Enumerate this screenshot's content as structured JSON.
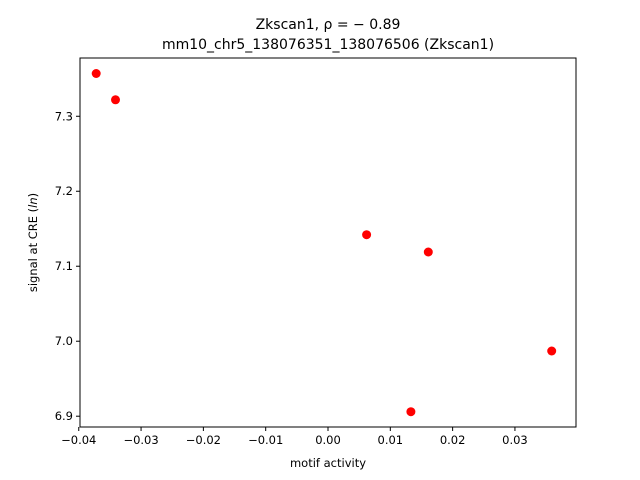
{
  "chart_data": {
    "type": "scatter",
    "title": "Zkscan1, ρ = − 0.89",
    "title_line_2": "mm10_chr5_138076351_138076506 (Zkscan1)",
    "xlabel": "motif activity",
    "ylabel_prefix": "signal at CRE (",
    "ylabel_italic": "ln",
    "ylabel_suffix": ")",
    "xlim": [
      -0.0398,
      0.0398
    ],
    "ylim": [
      6.8856,
      7.3777
    ],
    "x_ticks": [
      -0.04,
      -0.03,
      -0.02,
      -0.01,
      0.0,
      0.01,
      0.02,
      0.03
    ],
    "x_tick_labels": [
      "−0.04",
      "−0.03",
      "−0.02",
      "−0.01",
      "0.00",
      "0.01",
      "0.02",
      "0.03"
    ],
    "y_ticks": [
      6.9,
      7.0,
      7.1,
      7.2,
      7.3
    ],
    "y_tick_labels": [
      "6.9",
      "7.0",
      "7.1",
      "7.2",
      "7.3"
    ],
    "grid": false,
    "marker_color": "#ff0000",
    "points": [
      {
        "x": -0.0372,
        "y": 7.357
      },
      {
        "x": -0.0341,
        "y": 7.322
      },
      {
        "x": 0.0062,
        "y": 7.142
      },
      {
        "x": 0.0161,
        "y": 7.119
      },
      {
        "x": 0.0133,
        "y": 6.906
      },
      {
        "x": 0.0359,
        "y": 6.987
      }
    ]
  }
}
